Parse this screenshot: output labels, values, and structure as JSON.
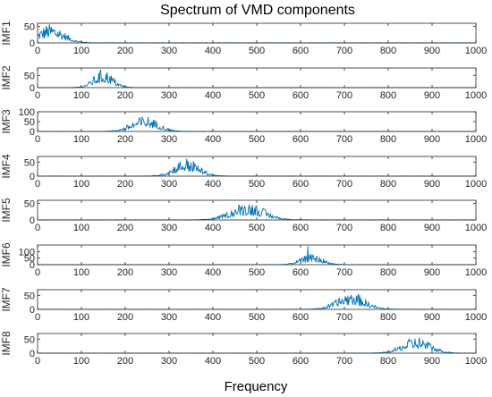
{
  "chart_data": {
    "type": "line",
    "title": "Spectrum of VMD components",
    "xlabel": "Frequency",
    "xlim": [
      0,
      1000
    ],
    "xticks": [
      0,
      100,
      200,
      300,
      400,
      500,
      600,
      700,
      800,
      900,
      1000
    ],
    "line_color": "#0072BD",
    "grid": false,
    "panels": [
      {
        "name": "IMF1",
        "ylim": [
          0,
          60
        ],
        "yticks": [
          0,
          50
        ],
        "center": 30,
        "width": 30,
        "peak": 58,
        "spike": null
      },
      {
        "name": "IMF2",
        "ylim": [
          0,
          80
        ],
        "yticks": [
          0,
          50
        ],
        "center": 150,
        "width": 22,
        "peak": 75,
        "spike": null
      },
      {
        "name": "IMF3",
        "ylim": [
          0,
          100
        ],
        "yticks": [
          0,
          50,
          100
        ],
        "center": 245,
        "width": 30,
        "peak": 80,
        "spike": null
      },
      {
        "name": "IMF4",
        "ylim": [
          0,
          70
        ],
        "yticks": [
          0,
          50
        ],
        "center": 340,
        "width": 28,
        "peak": 65,
        "spike": null
      },
      {
        "name": "IMF5",
        "ylim": [
          0,
          60
        ],
        "yticks": [
          0,
          50
        ],
        "center": 480,
        "width": 38,
        "peak": 55,
        "spike": null
      },
      {
        "name": "IMF6",
        "ylim": [
          0,
          150
        ],
        "yticks": [
          0,
          50,
          100
        ],
        "center": 625,
        "width": 25,
        "peak": 80,
        "spike": {
          "x": 617,
          "y": 140
        }
      },
      {
        "name": "IMF7",
        "ylim": [
          0,
          70
        ],
        "yticks": [
          0,
          50
        ],
        "center": 715,
        "width": 32,
        "peak": 62,
        "spike": null
      },
      {
        "name": "IMF8",
        "ylim": [
          0,
          70
        ],
        "yticks": [
          0,
          50
        ],
        "center": 865,
        "width": 32,
        "peak": 60,
        "spike": null
      }
    ]
  }
}
